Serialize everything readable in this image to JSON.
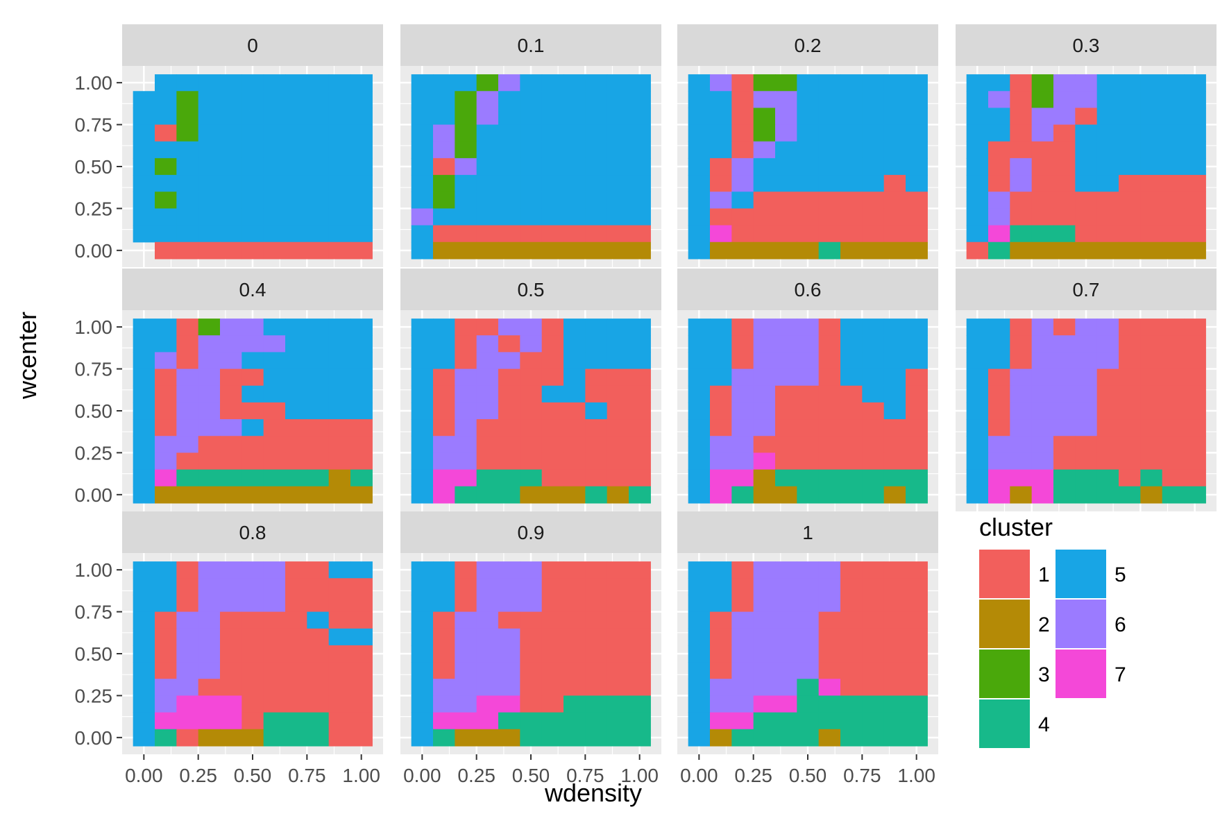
{
  "chart_data": {
    "type": "heatmap",
    "xlabel": "wdensity",
    "ylabel": "wcenter",
    "x_ticks": [
      "0.00",
      "0.25",
      "0.50",
      "0.75",
      "1.00"
    ],
    "y_ticks": [
      "0.00",
      "0.25",
      "0.50",
      "0.75",
      "1.00"
    ],
    "x_values": [
      0.0,
      0.1,
      0.2,
      0.3,
      0.4,
      0.5,
      0.6,
      0.7,
      0.8,
      0.9,
      1.0
    ],
    "y_values": [
      0.0,
      0.1,
      0.2,
      0.3,
      0.4,
      0.5,
      0.6,
      0.7,
      0.8,
      0.9,
      1.0
    ],
    "xlim": [
      -0.1,
      1.1
    ],
    "ylim": [
      -0.1,
      1.1
    ],
    "legend": {
      "title": "cluster",
      "position": "right",
      "entries": [
        {
          "label": "1",
          "color": "#F25F5C"
        },
        {
          "label": "2",
          "color": "#B48A06"
        },
        {
          "label": "3",
          "color": "#4AA80B"
        },
        {
          "label": "4",
          "color": "#17B98A"
        },
        {
          "label": "5",
          "color": "#18A5E5"
        },
        {
          "label": "6",
          "color": "#9B7BFF"
        },
        {
          "label": "7",
          "color": "#F448D8"
        }
      ]
    },
    "grid": true,
    "note": "cluster grids: rows from wcenter 1.0 (top) down to 0.0; columns wdensity 0.0..1.0; 0 = no tile",
    "facets": [
      {
        "label": "0",
        "grid": [
          "05555555555",
          "55355555555",
          "55355555555",
          "51355555555",
          "55555555555",
          "53555555555",
          "55555555555",
          "53555555555",
          "55555555555",
          "55555555555",
          "01111111111"
        ]
      },
      {
        "label": "0.1",
        "grid": [
          "55536555555",
          "55365555555",
          "55365555555",
          "56355555555",
          "56355555555",
          "51655555555",
          "53555555555",
          "53555555555",
          "65555555555",
          "51111111111",
          "52222222222"
        ]
      },
      {
        "label": "0.2",
        "grid": [
          "56133555555",
          "55166555555",
          "55136555555",
          "55136555555",
          "55165555555",
          "51655555555",
          "51655555515",
          "56511111111",
          "51111111111",
          "57111111111",
          "52222242222"
        ]
      },
      {
        "label": "0.3",
        "grid": [
          "55136655555",
          "56136655555",
          "55166155555",
          "55161555555",
          "51111555555",
          "51611555555",
          "51611551111",
          "56111111111",
          "56111111111",
          "57444111111",
          "14222222222"
        ]
      },
      {
        "label": "0.4",
        "grid": [
          "55136655555",
          "55166665555",
          "56166555555",
          "51661155555",
          "51661555555",
          "51661115555",
          "51666511111",
          "56611111111",
          "56111111111",
          "57444444424",
          "52222222222"
        ]
      },
      {
        "label": "0.5",
        "grid": [
          "55116615555",
          "55161615555",
          "55166115555",
          "51661115111",
          "51661155111",
          "51661111511",
          "51611111111",
          "56611111111",
          "56611111111",
          "57744411111",
          "57444222424"
        ]
      },
      {
        "label": "0.6",
        "grid": [
          "55166615555",
          "55166615555",
          "55166615555",
          "55666615551",
          "51661111551",
          "51661111151",
          "51661111111",
          "56611111111",
          "56671111111",
          "57724444444",
          "57422444424"
        ]
      },
      {
        "label": "0.7",
        "grid": [
          "55161661111",
          "55166661111",
          "55166661111",
          "51666611111",
          "51666611111",
          "51666611111",
          "51666611111",
          "56661111111",
          "56661111111",
          "57774441411",
          "57274444244"
        ]
      },
      {
        "label": "0.8",
        "grid": [
          "55166661155",
          "55166661111",
          "55166661111",
          "51661111511",
          "51661111155",
          "51661111111",
          "51661111111",
          "56611111111",
          "56777111111",
          "57777144411",
          "54122244411"
        ]
      },
      {
        "label": "0.9",
        "grid": [
          "55166611111",
          "55166611111",
          "55166611111",
          "51661111111",
          "51666111111",
          "51666111111",
          "51666111111",
          "56666111111",
          "56677114444",
          "57774444444",
          "54222444444"
        ]
      },
      {
        "label": "1",
        "grid": [
          "55166661111",
          "55166661111",
          "55166661111",
          "51666611111",
          "51666611111",
          "51666611111",
          "51666611111",
          "56666471111",
          "56677444444",
          "57744444444",
          "52444424444"
        ]
      }
    ]
  }
}
